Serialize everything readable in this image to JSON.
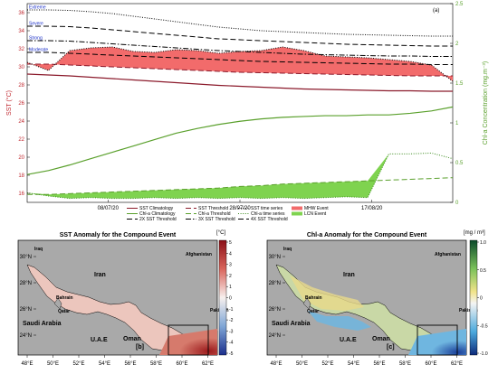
{
  "chart_data": [
    {
      "type": "line",
      "panel_label": "(a)",
      "xlabel": "",
      "x_ticks": [
        "08/07/20",
        "28/07/20",
        "17/08/20"
      ],
      "ylabel_left": "SST (°C)",
      "ylabel_right": "Chl-a Concentration (mg.m⁻³)",
      "ylim_left": [
        15,
        37
      ],
      "yticks_left": [
        16,
        18,
        20,
        22,
        24,
        26,
        28,
        30,
        32,
        34,
        36
      ],
      "ylim_right": [
        0,
        2.5
      ],
      "yticks_right": [
        0,
        0.5,
        1,
        1.5,
        2,
        2.5
      ],
      "threshold_labels": [
        "Extreme",
        "Severe",
        "Strong",
        "Moderate"
      ],
      "x": [
        0,
        0.05,
        0.1,
        0.15,
        0.2,
        0.25,
        0.3,
        0.35,
        0.4,
        0.45,
        0.5,
        0.55,
        0.6,
        0.65,
        0.7,
        0.75,
        0.8,
        0.85,
        0.9,
        0.95,
        1.0
      ],
      "series": [
        {
          "name": "SST Climatology",
          "axis": "left",
          "color": "#8b1a2b",
          "style": "solid",
          "values": [
            29.2,
            29.1,
            29.0,
            28.85,
            28.7,
            28.55,
            28.4,
            28.25,
            28.1,
            27.95,
            27.85,
            27.75,
            27.65,
            27.55,
            27.5,
            27.45,
            27.4,
            27.35,
            27.35,
            27.3,
            27.3
          ]
        },
        {
          "name": "SST Threshold",
          "axis": "left",
          "color": "#8b1a2b",
          "style": "dashed",
          "values": [
            30.3,
            30.3,
            30.2,
            30.1,
            30.0,
            29.9,
            29.8,
            29.7,
            29.6,
            29.5,
            29.4,
            29.35,
            29.3,
            29.25,
            29.2,
            29.15,
            29.1,
            29.05,
            29.0,
            29.0,
            29.0
          ]
        },
        {
          "name": "SST time series",
          "axis": "left",
          "color": "#000000",
          "style": "dotted",
          "values": [
            30.5,
            29.6,
            31.8,
            32.1,
            32.2,
            31.7,
            31.6,
            31.9,
            31.8,
            31.5,
            31.7,
            31.8,
            32.2,
            31.8,
            31.2,
            31.1,
            31.0,
            30.8,
            30.6,
            30.2,
            28.4
          ]
        },
        {
          "name": "2X SST Threshold",
          "axis": "left",
          "color": "#000000",
          "style": "dashed",
          "values": [
            31.6,
            31.6,
            31.5,
            31.4,
            31.3,
            31.2,
            31.1,
            31.0,
            30.9,
            30.8,
            30.7,
            30.6,
            30.55,
            30.5,
            30.45,
            30.4,
            30.35,
            30.3,
            30.3,
            30.25,
            30.25
          ]
        },
        {
          "name": "3X SST Threshold",
          "axis": "left",
          "color": "#000000",
          "style": "dashdot",
          "values": [
            32.9,
            32.9,
            32.85,
            32.7,
            32.55,
            32.4,
            32.25,
            32.1,
            31.95,
            31.8,
            31.7,
            31.6,
            31.5,
            31.4,
            31.35,
            31.3,
            31.25,
            31.2,
            31.2,
            31.15,
            31.15
          ]
        },
        {
          "name": "4X SST Threshold",
          "axis": "left",
          "color": "#000000",
          "style": "dashed",
          "values": [
            34.5,
            34.5,
            34.45,
            34.3,
            34.1,
            33.9,
            33.7,
            33.5,
            33.3,
            33.1,
            33.0,
            32.9,
            32.8,
            32.7,
            32.6,
            32.5,
            32.45,
            32.4,
            32.35,
            32.3,
            32.3
          ]
        },
        {
          "name": "SST time series",
          "axis": "left",
          "color": "#000000",
          "style": "dotted",
          "values": [
            36.3,
            36.3,
            36.25,
            36.1,
            35.9,
            35.6,
            35.3,
            35.0,
            34.7,
            34.4,
            34.2,
            34.0,
            33.9,
            33.8,
            33.7,
            33.6,
            33.55,
            33.5,
            33.45,
            33.4,
            33.4
          ]
        },
        {
          "name": "Chl-a Climatology",
          "axis": "right",
          "color": "#5aa02c",
          "style": "solid",
          "values": [
            0.35,
            0.4,
            0.47,
            0.55,
            0.63,
            0.71,
            0.79,
            0.87,
            0.93,
            0.98,
            1.02,
            1.05,
            1.07,
            1.08,
            1.09,
            1.09,
            1.1,
            1.1,
            1.12,
            1.15,
            1.2
          ]
        },
        {
          "name": "Chl-a Threshold",
          "axis": "right",
          "color": "#5aa02c",
          "style": "dashed",
          "values": [
            0.1,
            0.1,
            0.11,
            0.12,
            0.13,
            0.14,
            0.15,
            0.16,
            0.17,
            0.18,
            0.2,
            0.21,
            0.23,
            0.24,
            0.25,
            0.26,
            0.27,
            0.28,
            0.29,
            0.3,
            0.31
          ]
        },
        {
          "name": "Chl-a time series",
          "axis": "right",
          "color": "#3a8a1c",
          "style": "dotted",
          "values": [
            0.12,
            0.08,
            0.05,
            0.06,
            0.05,
            0.05,
            0.06,
            0.05,
            0.06,
            0.05,
            0.06,
            0.05,
            0.06,
            0.05,
            0.06,
            0.07,
            0.06,
            0.61,
            0.61,
            0.62,
            0.55
          ]
        }
      ],
      "events": [
        {
          "name": "MHW Event",
          "color": "#f26b6b"
        },
        {
          "name": "LCN Event",
          "color": "#7fd34f"
        }
      ],
      "legend_rows": [
        [
          "SST Climatology",
          "SST Threshold",
          "SST time series",
          "MHW Event"
        ],
        [
          "Chl-a Climatology",
          "Chl-a Threshold",
          "Chl-a time series",
          "LCN Event"
        ],
        [
          "2X SST Threshold",
          "3X SST Threshold",
          "4X SST Threshold"
        ]
      ]
    },
    {
      "type": "heatmap",
      "title": "SST Anomaly  for the Compound Event",
      "panel_label": "[b]",
      "colorbar_label": "[°C]",
      "colorbar_ticks": [
        5,
        4,
        3,
        2,
        1,
        0,
        -1,
        -2,
        -3,
        -4,
        -5
      ],
      "x_ticks": [
        "48°E",
        "50°E",
        "52°E",
        "54°E",
        "56°E",
        "58°E",
        "60°E",
        "62°E"
      ],
      "y_ticks": [
        "30°N",
        "28°N",
        "26°N",
        "24°N"
      ],
      "place_labels": [
        "Iraq",
        "Iran",
        "Bahrain",
        "Qatar",
        "Saudi Arabia",
        "U.A.E",
        "Oman",
        "Afghanistan",
        "Pakistan"
      ]
    },
    {
      "type": "heatmap",
      "title": "Chl-a Anomaly  for the Compound Event",
      "panel_label": "[c]",
      "colorbar_label": "[mg / m³]",
      "colorbar_ticks": [
        "1.0",
        "0.5",
        "0",
        "-0.5",
        "-1.0"
      ],
      "x_ticks": [
        "48°E",
        "50°E",
        "52°E",
        "54°E",
        "56°E",
        "58°E",
        "60°E",
        "62°E"
      ],
      "y_ticks": [
        "30°N",
        "28°N",
        "26°N",
        "24°N"
      ],
      "place_labels": [
        "Iraq",
        "Iran",
        "Afghanistan",
        "Bahrain",
        "Qatar",
        "Saudi Arabia",
        "U.A.E",
        "Oman",
        "Pakistan"
      ]
    }
  ]
}
